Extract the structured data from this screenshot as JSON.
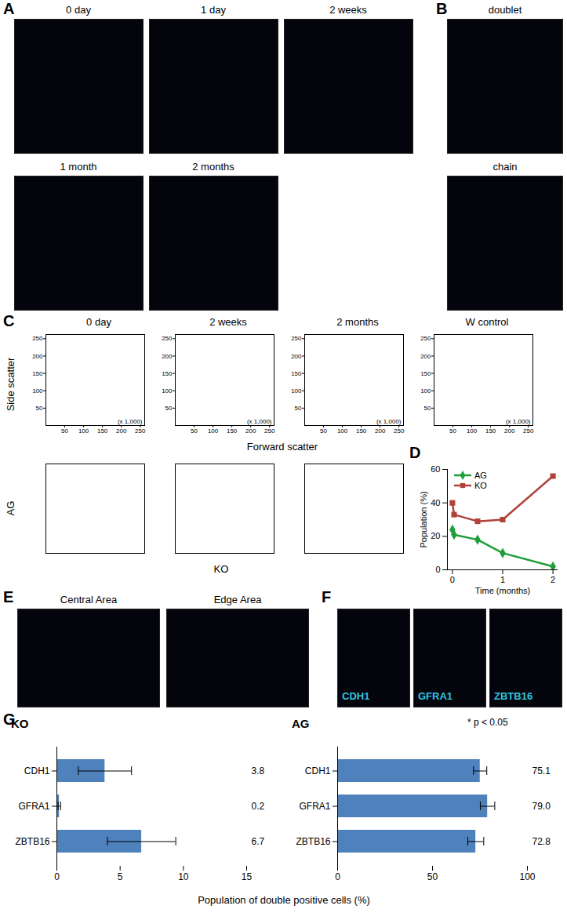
{
  "panel_letters": [
    "A",
    "B",
    "C",
    "D",
    "E",
    "F",
    "G"
  ],
  "image_panels": {
    "A": [
      "0 day",
      "1 day",
      "2 weeks",
      "1 month",
      "2 months"
    ],
    "B": [
      "doublet",
      "chain"
    ],
    "E": [
      "Central Area",
      "Edge Area"
    ],
    "F": [
      "CDH1",
      "GFRA1",
      "ZBTB16"
    ]
  },
  "flow_cytometry": {
    "scatter": {
      "titles": [
        "0 day",
        "2 weeks",
        "2 months",
        "W control"
      ],
      "xlabel": "Forward scatter",
      "ylabel": "Side scatter",
      "xlim": [
        0,
        262
      ],
      "ylim": [
        0,
        262
      ],
      "xticks": [
        50,
        100,
        150,
        200,
        250
      ],
      "yticks": [
        50,
        100,
        150,
        200,
        250
      ],
      "annotation": "(x 1,000)"
    },
    "fluorescence": {
      "xlabel": "KO",
      "ylabel": "AG",
      "log": true,
      "xlim": [
        10,
        100000
      ],
      "ylim": [
        10,
        100000
      ],
      "tick_labels": false
    }
  },
  "chart_data": [
    {
      "type": "line",
      "xlabel": "Time (months)",
      "ylabel": "Population (%)",
      "x": [
        0,
        0.033,
        0.5,
        1,
        2
      ],
      "xlim": [
        -0.1,
        2.1
      ],
      "xticks": [
        0,
        1,
        2
      ],
      "ylim": [
        0,
        60
      ],
      "yticks": [
        0,
        20,
        40,
        60
      ],
      "legend": "top-left",
      "series": [
        {
          "name": "AG",
          "color": "#1f9e3c",
          "marker": "diamond",
          "values": [
            24,
            21,
            18,
            10,
            2
          ]
        },
        {
          "name": "KO",
          "color": "#b0423a",
          "marker": "square",
          "values": [
            40,
            33,
            29,
            30,
            56
          ]
        }
      ]
    },
    {
      "type": "bar",
      "orientation": "horizontal",
      "title": "KO",
      "categories": [
        "CDH1",
        "GFRA1",
        "ZBTB16"
      ],
      "values": [
        3.8,
        0.2,
        6.7
      ],
      "errors": [
        2.1,
        0.1,
        2.7
      ],
      "xlim": [
        0,
        15
      ],
      "xticks": [
        0,
        5,
        10,
        15
      ],
      "xlabel": "Population of double positive cells (%)",
      "data_labels": true,
      "color": "#4f81bd"
    },
    {
      "type": "bar",
      "orientation": "horizontal",
      "title": "AG",
      "categories": [
        "CDH1",
        "GFRA1",
        "ZBTB16"
      ],
      "values": [
        75.1,
        79.0,
        72.8
      ],
      "value_labels": [
        "75.1",
        "79.0",
        "72.8"
      ],
      "errors": [
        3.5,
        3.8,
        4.2
      ],
      "xlim": [
        0,
        100
      ],
      "xticks": [
        0,
        50,
        100
      ],
      "data_labels": true,
      "color": "#4f81bd",
      "annotation": "* p < 0.05"
    }
  ]
}
